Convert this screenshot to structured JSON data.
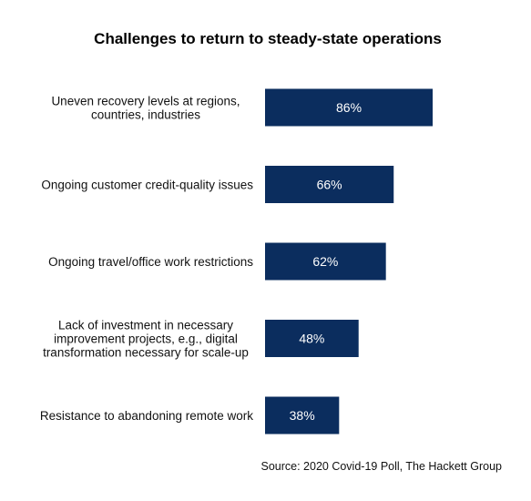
{
  "chart_data": {
    "type": "bar",
    "orientation": "horizontal",
    "title": "Challenges to return to steady-state operations",
    "categories": [
      [
        "Uneven recovery levels at regions,",
        "countries, industries"
      ],
      [
        "Ongoing customer credit-quality issues"
      ],
      [
        "Ongoing travel/office work restrictions"
      ],
      [
        "Lack of investment in necessary",
        "improvement projects, e.g., digital",
        "transformation necessary for scale-up"
      ],
      [
        "Resistance to abandoning remote work"
      ]
    ],
    "values": [
      86,
      66,
      62,
      48,
      38
    ],
    "value_labels": [
      "86%",
      "66%",
      "62%",
      "48%",
      "38%"
    ],
    "unit": "%",
    "xlim": [
      0,
      100
    ],
    "grid": false,
    "legend": "none",
    "bar_color": "#0b2d5e",
    "source": "Source: 2020 Covid-19 Poll, The Hackett Group"
  }
}
